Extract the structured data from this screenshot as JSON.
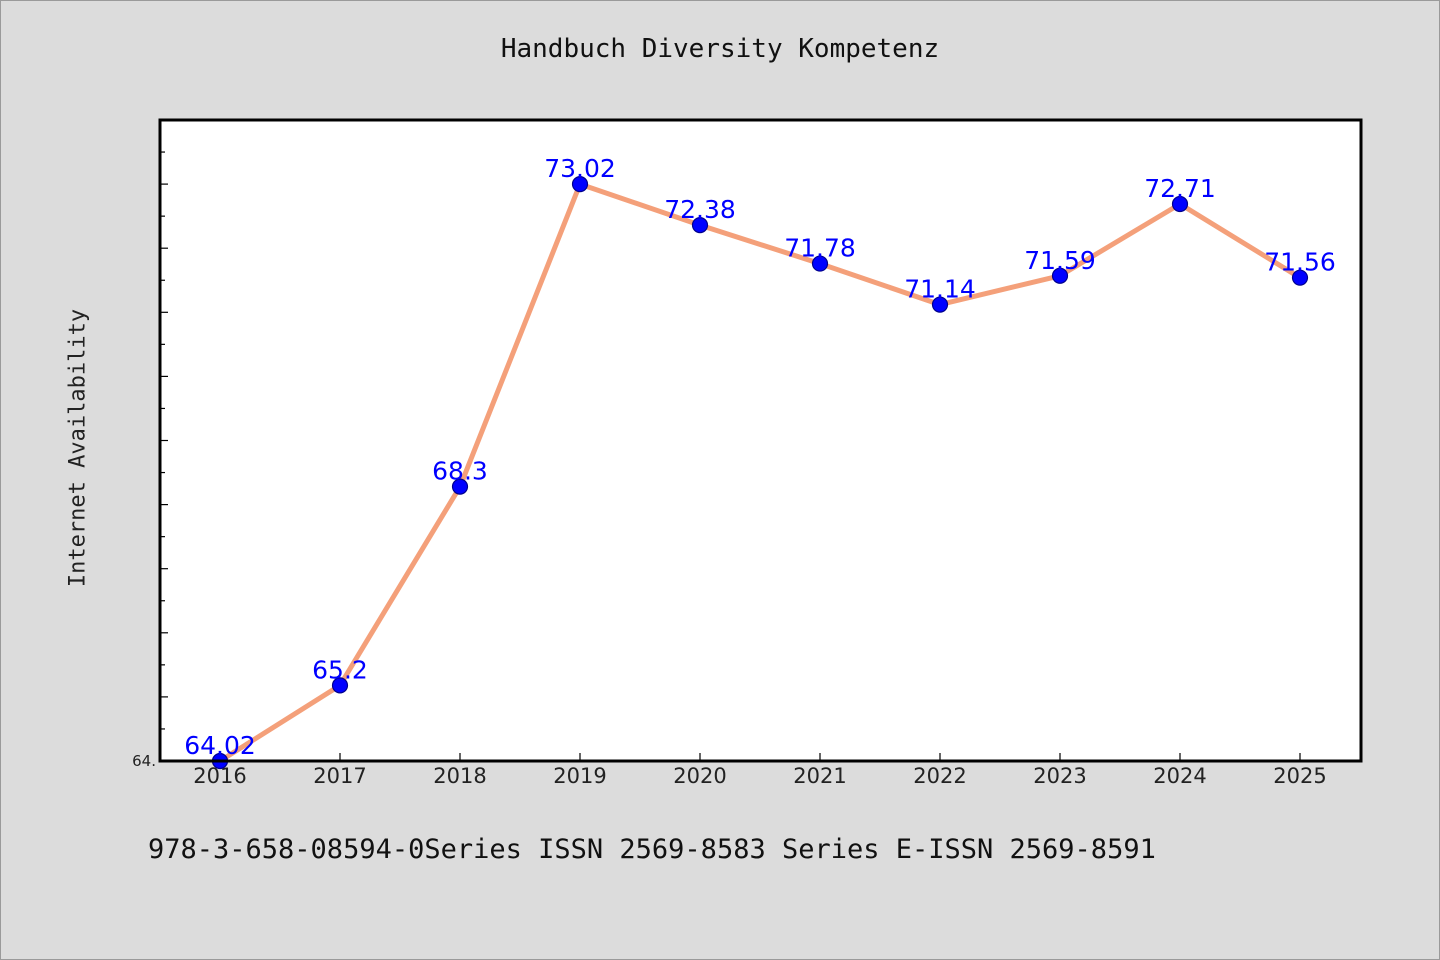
{
  "chart_title": "Handbuch Diversity Kompetenz",
  "footer": "978-3-658-08594-0Series ISSN 2569-8583 Series E-ISSN 2569-8591",
  "chart_data": {
    "type": "line",
    "title": "Handbuch Diversity Kompetenz",
    "xlabel": "",
    "ylabel": "Internet Availability",
    "categories": [
      "2016",
      "2017",
      "2018",
      "2019",
      "2020",
      "2021",
      "2022",
      "2023",
      "2024",
      "2025"
    ],
    "series": [
      {
        "values": [
          64.02,
          65.2,
          68.3,
          73.02,
          72.38,
          71.78,
          71.14,
          71.59,
          72.71,
          71.56
        ],
        "data_labels": [
          "64.02",
          "65.2",
          "68.3",
          "73.02",
          "72.38",
          "71.78",
          "71.14",
          "71.59",
          "72.71",
          "71.56"
        ]
      }
    ],
    "ylim": [
      64.02,
      74.02
    ],
    "yticks_shown": [
      "64."
    ],
    "grid": false,
    "legend": "none",
    "colors": {
      "line": "#f4a07a",
      "marker_fill": "#0000ff",
      "marker_edge": "#00008b",
      "data_label": "#0000ff",
      "plot_background": "#ffffff",
      "figure_background": "#dcdcdc"
    }
  }
}
